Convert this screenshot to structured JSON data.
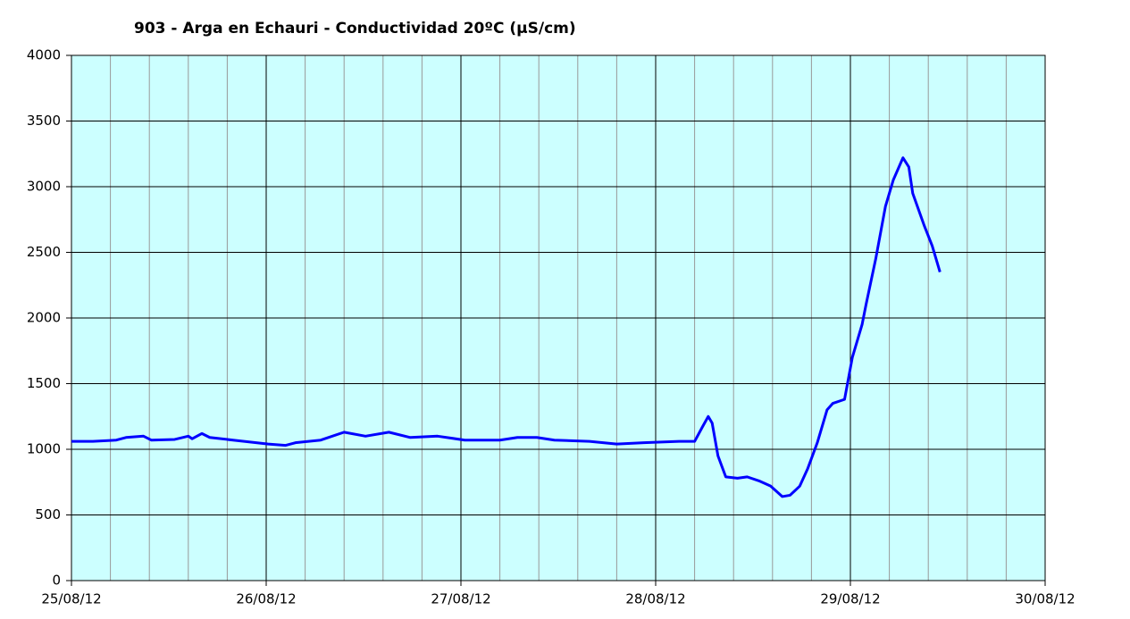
{
  "chart_data": {
    "type": "line",
    "title": "903 - Arga en Echauri - Conductividad 20ºC (µS/cm)",
    "x": [
      0,
      0.11,
      0.23,
      0.28,
      0.37,
      0.41,
      0.53,
      0.6,
      0.62,
      0.67,
      0.71,
      0.83,
      1.01,
      1.1,
      1.15,
      1.28,
      1.4,
      1.51,
      1.63,
      1.74,
      1.88,
      2.02,
      2.2,
      2.29,
      2.39,
      2.48,
      2.66,
      2.8,
      2.94,
      3.12,
      3.2,
      3.24,
      3.27,
      3.29,
      3.32,
      3.36,
      3.42,
      3.47,
      3.53,
      3.59,
      3.65,
      3.69,
      3.74,
      3.78,
      3.83,
      3.88,
      3.91,
      3.97,
      4.01,
      4.06,
      4.08,
      4.13,
      4.18,
      4.22,
      4.27,
      4.3,
      4.32,
      4.38,
      4.42,
      4.46
    ],
    "series": [
      {
        "name": "Conductividad",
        "color": "#0000ff",
        "values": [
          1060,
          1060,
          1070,
          1090,
          1100,
          1070,
          1075,
          1100,
          1080,
          1120,
          1090,
          1070,
          1040,
          1030,
          1050,
          1070,
          1130,
          1100,
          1130,
          1090,
          1100,
          1070,
          1070,
          1090,
          1090,
          1070,
          1060,
          1040,
          1050,
          1060,
          1060,
          1170,
          1250,
          1200,
          950,
          790,
          780,
          790,
          760,
          720,
          640,
          650,
          720,
          850,
          1050,
          1300,
          1350,
          1380,
          1700,
          1950,
          2100,
          2450,
          2850,
          3050,
          3220,
          3150,
          2950,
          2700,
          2550,
          2350
        ]
      }
    ],
    "xlim": [
      0,
      5
    ],
    "xticks": [
      {
        "value": 0,
        "label": "25/08/12"
      },
      {
        "value": 1,
        "label": "26/08/12"
      },
      {
        "value": 2,
        "label": "27/08/12"
      },
      {
        "value": 3,
        "label": "28/08/12"
      },
      {
        "value": 4,
        "label": "29/08/12"
      },
      {
        "value": 5,
        "label": "30/08/12"
      }
    ],
    "xminorticks": [
      0.2,
      0.4,
      0.6,
      0.8,
      1.2,
      1.4,
      1.6,
      1.8,
      2.2,
      2.4,
      2.6,
      2.8,
      3.2,
      3.4,
      3.6,
      3.8,
      4.2,
      4.4,
      4.6,
      4.8
    ],
    "ylim": [
      0,
      4000
    ],
    "yticks": [
      0,
      500,
      1000,
      1500,
      2000,
      2500,
      3000,
      3500,
      4000
    ],
    "grid": true
  }
}
